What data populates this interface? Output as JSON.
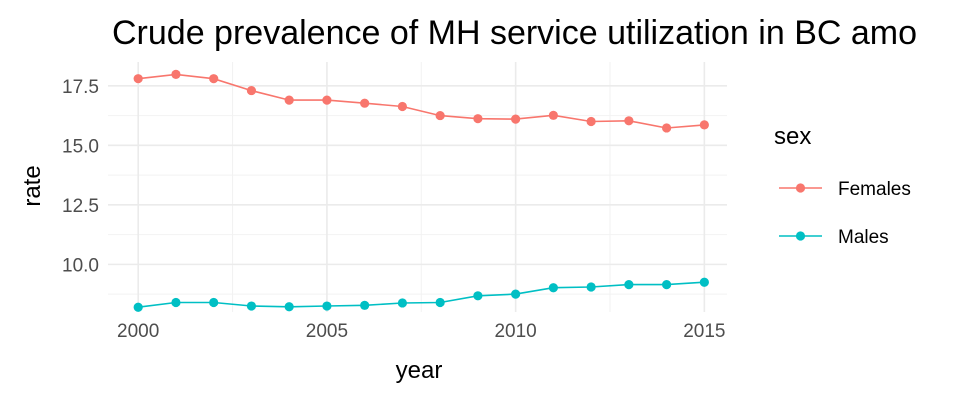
{
  "chart_data": {
    "type": "line",
    "title": "Crude prevalence of MH service utilization in BC amo",
    "xlabel": "year",
    "ylabel": "rate",
    "xlim": [
      1999.2,
      2015.6
    ],
    "ylim": [
      8.0,
      18.5
    ],
    "x_ticks": [
      2000,
      2005,
      2010,
      2015
    ],
    "y_ticks": [
      10.0,
      12.5,
      15.0,
      17.5
    ],
    "x_tick_labels": [
      "2000",
      "2005",
      "2010",
      "2015"
    ],
    "y_tick_labels": [
      "10.0",
      "12.5",
      "15.0",
      "17.5"
    ],
    "grid": true,
    "legend": {
      "title": "sex",
      "position": "right"
    },
    "x": [
      2000,
      2001,
      2002,
      2003,
      2004,
      2005,
      2006,
      2007,
      2008,
      2009,
      2010,
      2011,
      2012,
      2013,
      2014,
      2015
    ],
    "series": [
      {
        "name": "Females",
        "color": "#F8766D",
        "values": [
          17.8,
          17.98,
          17.8,
          17.3,
          16.9,
          16.9,
          16.77,
          16.63,
          16.25,
          16.12,
          16.1,
          16.26,
          16.0,
          16.03,
          15.73,
          15.86
        ]
      },
      {
        "name": "Males",
        "color": "#00BFC4",
        "values": [
          8.2,
          8.4,
          8.4,
          8.25,
          8.22,
          8.25,
          8.28,
          8.38,
          8.4,
          8.68,
          8.75,
          9.02,
          9.05,
          9.15,
          9.15,
          9.25
        ]
      }
    ]
  }
}
